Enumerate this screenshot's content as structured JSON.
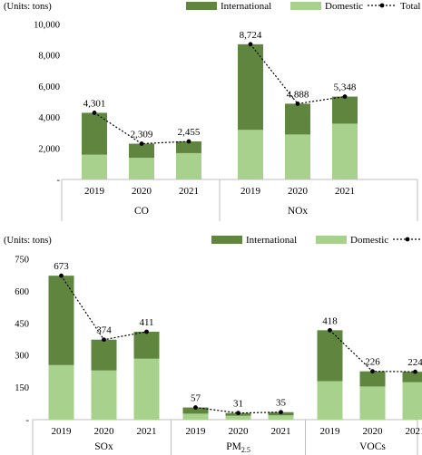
{
  "colors": {
    "international": "#5f853f",
    "domestic": "#a9d18e",
    "total_line": "#000000"
  },
  "chart_data": [
    {
      "type": "bar",
      "stacked": true,
      "unit_label": "(Units: tons)",
      "legend": [
        "International",
        "Domestic",
        "Total"
      ],
      "legend_position": "top-right",
      "y_ticks": [
        "10,000",
        "8,000",
        "6,000",
        "4,000",
        "2,000",
        "-"
      ],
      "ylim": [
        0,
        10000
      ],
      "groups": [
        {
          "name": "CO",
          "years": [
            "2019",
            "2020",
            "2021"
          ],
          "domestic": [
            1600,
            1400,
            1700
          ],
          "international": [
            2701,
            909,
            755
          ],
          "total": [
            4301,
            2309,
            2455
          ],
          "total_labels": [
            "4,301",
            "2,309",
            "2,455"
          ]
        },
        {
          "name": "NOx",
          "years": [
            "2019",
            "2020",
            "2021"
          ],
          "domestic": [
            3200,
            2900,
            3600
          ],
          "international": [
            5524,
            1988,
            1748
          ],
          "total": [
            8724,
            4888,
            5348
          ],
          "total_labels": [
            "8,724",
            "4,888",
            "5,348"
          ]
        }
      ]
    },
    {
      "type": "bar",
      "stacked": true,
      "unit_label": "(Units: tons)",
      "legend": [
        "International",
        "Domestic",
        "Total"
      ],
      "legend_position": "top-right",
      "y_ticks": [
        "750",
        "600",
        "450",
        "300",
        "150",
        "-"
      ],
      "ylim": [
        0,
        750
      ],
      "groups": [
        {
          "name": "SOx",
          "years": [
            "2019",
            "2020",
            "2021"
          ],
          "domestic": [
            255,
            230,
            285
          ],
          "international": [
            418,
            144,
            126
          ],
          "total": [
            673,
            374,
            411
          ],
          "total_labels": [
            "673",
            "374",
            "411"
          ]
        },
        {
          "name": "PM",
          "name_sub": "2.5",
          "years": [
            "2019",
            "2020",
            "2021"
          ],
          "domestic": [
            28,
            18,
            20
          ],
          "international": [
            29,
            13,
            15
          ],
          "total": [
            57,
            31,
            35
          ],
          "total_labels": [
            "57",
            "31",
            "35"
          ]
        },
        {
          "name": "VOCs",
          "years": [
            "2019",
            "2020",
            "2021"
          ],
          "domestic": [
            180,
            155,
            175
          ],
          "international": [
            238,
            71,
            49
          ],
          "total": [
            418,
            226,
            224
          ],
          "total_labels": [
            "418",
            "226",
            "224"
          ]
        }
      ]
    }
  ]
}
